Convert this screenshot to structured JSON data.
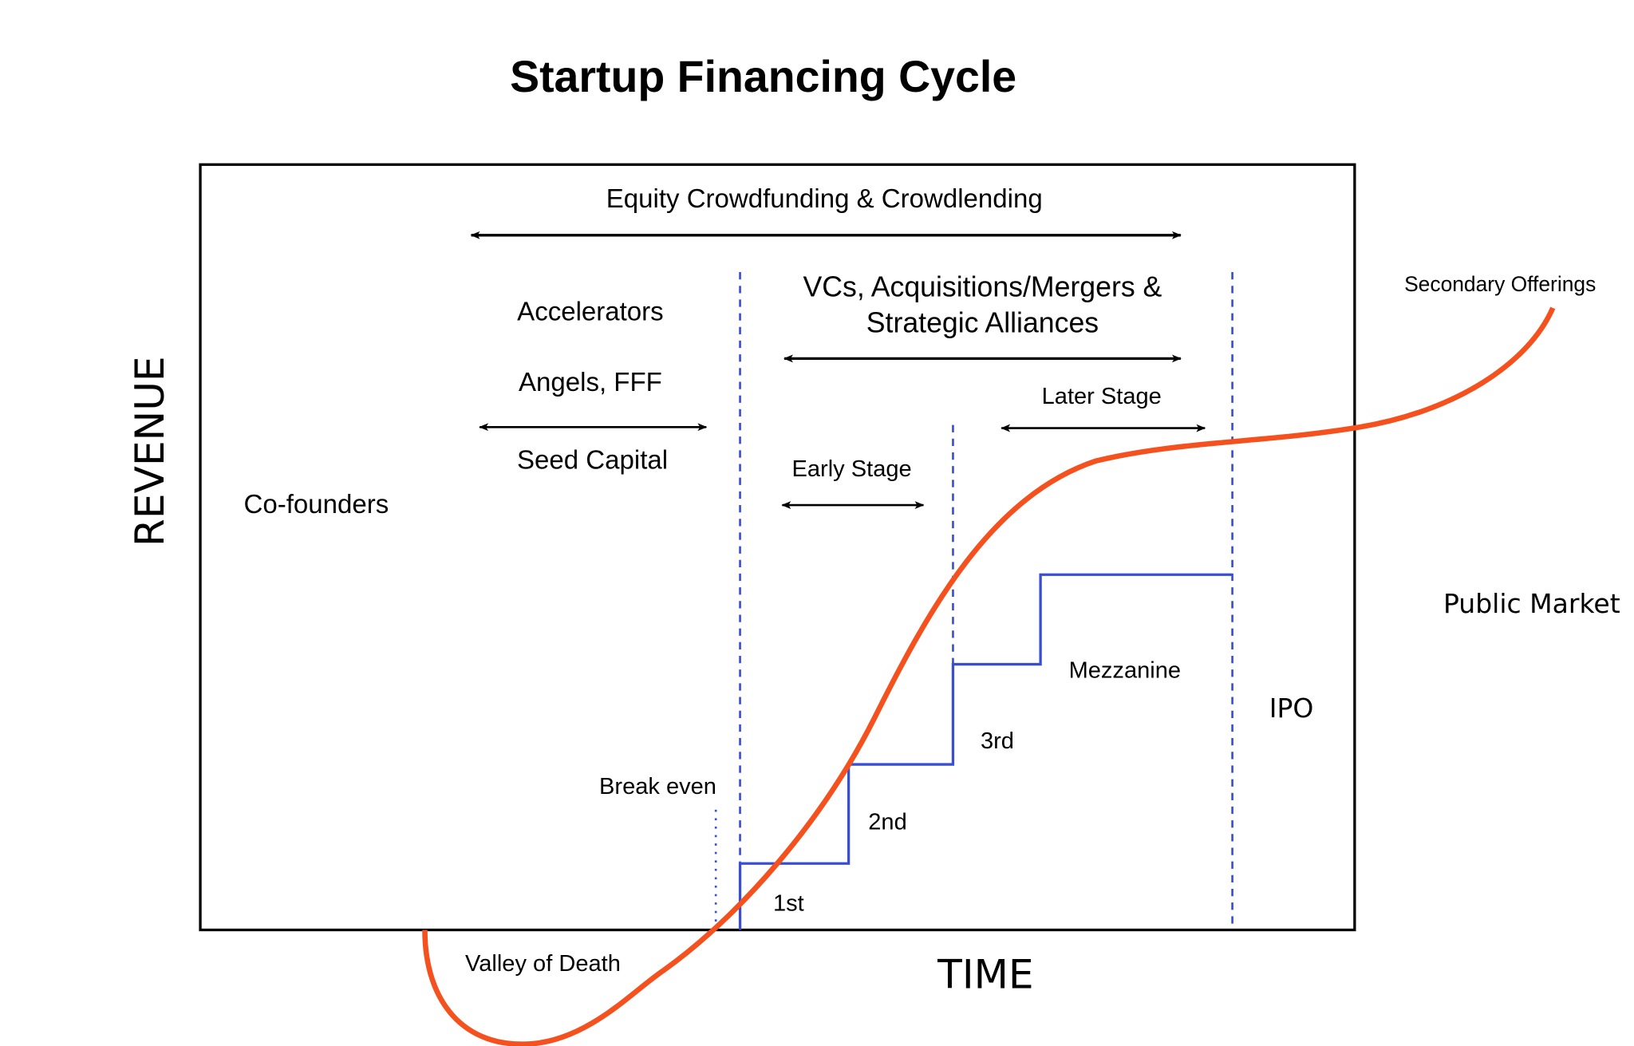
{
  "title": "Startup Financing Cycle",
  "axes": {
    "y": "REVENUE",
    "x": "TIME"
  },
  "labels": {
    "equity": "Equity Crowdfunding & Crowdlending",
    "accelerators": "Accelerators",
    "angels": "Angels, FFF",
    "seed": "Seed Capital",
    "cofounders": "Co-founders",
    "vcs_line1": "VCs, Acquisitions/Mergers &",
    "vcs_line2": "Strategic Alliances",
    "later_stage": "Later Stage",
    "early_stage": "Early Stage",
    "secondary": "Secondary Offerings",
    "public_market": "Public Market",
    "mezzanine": "Mezzanine",
    "ipo": "IPO",
    "third": "3rd",
    "second": "2nd",
    "break_even": "Break even",
    "first": "1st",
    "valley": "Valley of Death"
  }
}
